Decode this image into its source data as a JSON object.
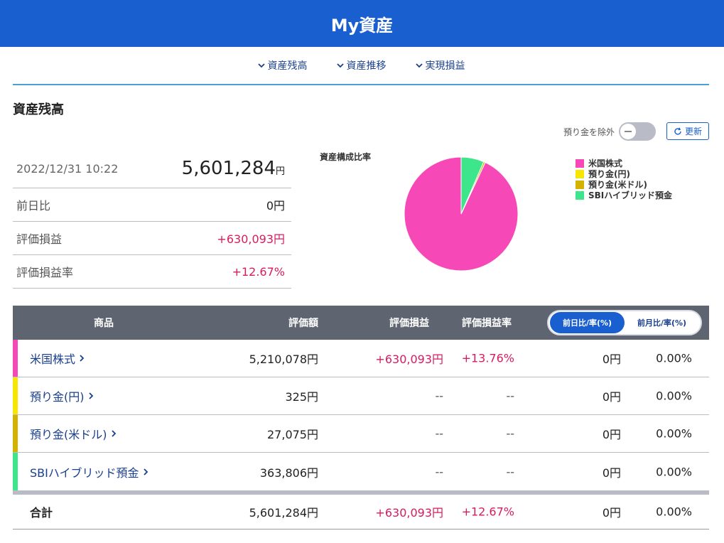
{
  "header": {
    "title": "My資産"
  },
  "subnav": [
    {
      "label": "資産残高"
    },
    {
      "label": "資産推移"
    },
    {
      "label": "実現損益"
    }
  ],
  "section": {
    "title": "資産残高"
  },
  "controls": {
    "exclude_label": "預り金を除外",
    "refresh_label": "更新",
    "exclude_toggle_on": false
  },
  "summary": {
    "datetime": "2022/12/31 10:22",
    "total_value": "5,601,284",
    "unit": "円",
    "rows": [
      {
        "label": "前日比",
        "value": "0円"
      },
      {
        "label": "評価損益",
        "value": "+630,093円"
      },
      {
        "label": "評価損益率",
        "value": "+12.67%"
      }
    ]
  },
  "chart_data": {
    "type": "pie",
    "title": "資産構成比率",
    "categories": [
      "米国株式",
      "預り金(円)",
      "預り金(米ドル)",
      "SBIハイブリッド預金"
    ],
    "values": [
      5210078,
      325,
      27075,
      363806
    ],
    "colors": [
      "#f748b8",
      "#f7e600",
      "#d4b300",
      "#3de68b"
    ],
    "legend_position": "right"
  },
  "table": {
    "headers": {
      "name": "商品",
      "amount": "評価額",
      "pl": "評価損益",
      "pl_rate": "評価損益率",
      "toggle_day": "前日比/率(%)",
      "toggle_month": "前月比/率(%)"
    },
    "rows": [
      {
        "name": "米国株式",
        "amount": "5,210,078円",
        "pl": "+630,093円",
        "pl_rate": "+13.76%",
        "day": "0円",
        "day_rate": "0.00%",
        "color": "#f748b8"
      },
      {
        "name": "預り金(円)",
        "amount": "325円",
        "pl": "--",
        "pl_rate": "--",
        "day": "0円",
        "day_rate": "0.00%",
        "color": "#f7e600"
      },
      {
        "name": "預り金(米ドル)",
        "amount": "27,075円",
        "pl": "--",
        "pl_rate": "--",
        "day": "0円",
        "day_rate": "0.00%",
        "color": "#d4b300"
      },
      {
        "name": "SBIハイブリッド預金",
        "amount": "363,806円",
        "pl": "--",
        "pl_rate": "--",
        "day": "0円",
        "day_rate": "0.00%",
        "color": "#3de68b"
      }
    ],
    "total": {
      "name": "合計",
      "amount": "5,601,284円",
      "pl": "+630,093円",
      "pl_rate": "+12.67%",
      "day": "0円",
      "day_rate": "0.00%"
    }
  }
}
